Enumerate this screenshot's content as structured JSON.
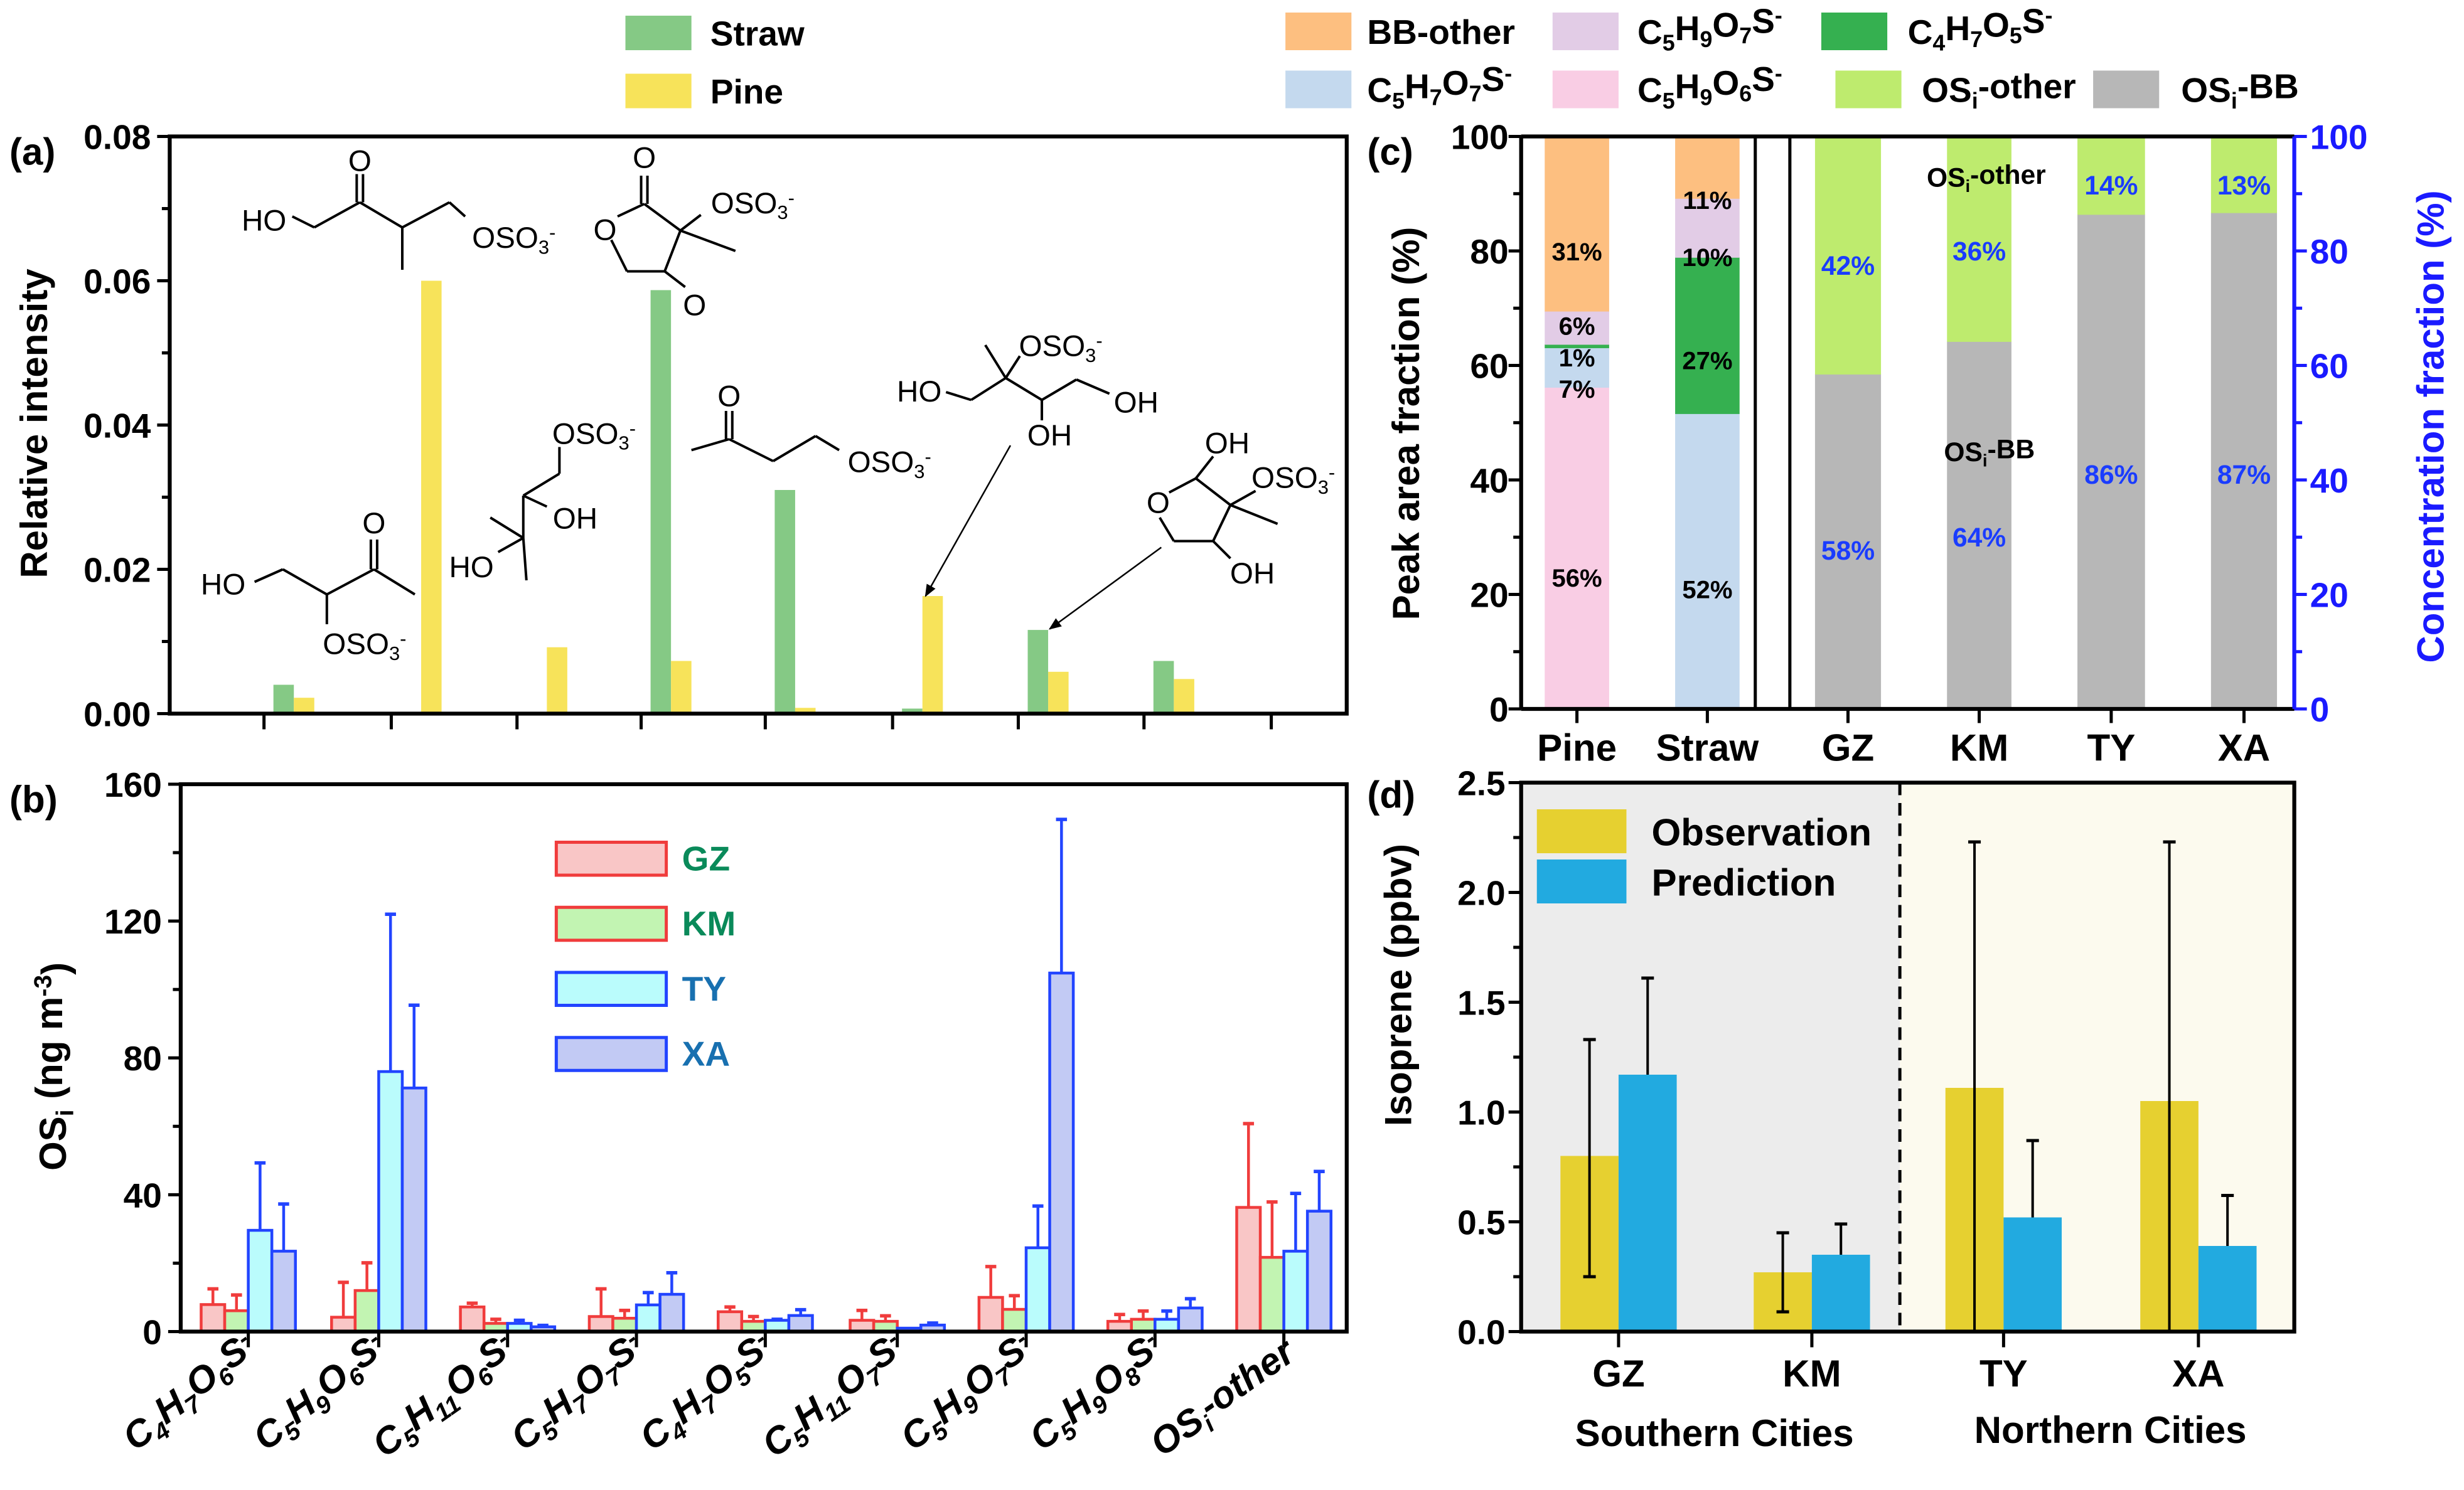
{
  "panel_labels": {
    "a": "(a)",
    "b": "(b)",
    "c": "(c)",
    "d": "(d)"
  },
  "legend_top": {
    "straw": "Straw",
    "pine": "Pine"
  },
  "chart_data": [
    {
      "panel": "a",
      "type": "bar",
      "title": "",
      "xlabel": "",
      "ylabel": "Relative intensity",
      "ylim": [
        0,
        0.08
      ],
      "yticks": [
        0,
        0.02,
        0.04,
        0.06,
        0.08
      ],
      "ytick_labels": [
        "0.00",
        "0.02",
        "0.04",
        "0.06",
        "0.08"
      ],
      "series": [
        {
          "name": "Straw",
          "color": "#85C985",
          "values": [
            0.004,
            0,
            0,
            0.0587,
            0.031,
            0.0007,
            0.0116,
            0.0073
          ]
        },
        {
          "name": "Pine",
          "color": "#F7E35A",
          "values": [
            0.0022,
            0.06,
            0.0092,
            0.0073,
            0.0008,
            0.0163,
            0.0058,
            0.0048
          ]
        }
      ],
      "structures": [
        {
          "labels": [
            "HO",
            "O",
            "OSO3-"
          ]
        },
        {
          "labels": [
            "O",
            "O",
            "OSO3-",
            "O"
          ]
        },
        {
          "labels": [
            "HO",
            "O",
            "OSO3-"
          ]
        },
        {
          "labels": [
            "OSO3-",
            "OH",
            "HO"
          ]
        },
        {
          "labels": [
            "O",
            "OSO3-"
          ]
        },
        {
          "labels": [
            "OSO3-",
            "HO",
            "OH",
            "OH"
          ]
        },
        {
          "labels": [
            "OH",
            "OSO3-",
            "O",
            "OH"
          ]
        }
      ]
    },
    {
      "panel": "b",
      "type": "bar",
      "title": "",
      "xlabel": "",
      "ylabel": "OSi (ng m-3)",
      "ylim": [
        0,
        160
      ],
      "yticks": [
        0,
        40,
        80,
        120,
        160
      ],
      "ytick_labels": [
        "0",
        "40",
        "80",
        "120",
        "160"
      ],
      "categories": [
        "C4H7O6S-",
        "C5H9O6S-",
        "C5H11O6S-",
        "C5H7O7S-",
        "C4H7O5S-",
        "C5H11O7S-",
        "C5H9O7S-",
        "C5H9O8S-",
        "OSi-other"
      ],
      "series": [
        {
          "name": "GZ",
          "fill": "#F9C6C6",
          "stroke": "#F03C3C",
          "label_color": "#0A8A5A",
          "values": [
            7.9,
            4.2,
            7.2,
            4.4,
            5.8,
            3.3,
            10.0,
            3.0,
            36.3
          ],
          "error_upper": [
            12.5,
            14.4,
            8.3,
            12.5,
            7.2,
            6.2,
            19.0,
            5.0,
            60.8
          ]
        },
        {
          "name": "KM",
          "fill": "#C2F4B2",
          "stroke": "#F03C3C",
          "label_color": "#0A8A5A",
          "values": [
            6.1,
            12.0,
            2.4,
            3.9,
            3.0,
            3.0,
            6.5,
            3.6,
            21.7
          ],
          "error_upper": [
            10.7,
            20.1,
            3.6,
            6.2,
            4.4,
            4.6,
            10.5,
            6.0,
            37.9
          ]
        },
        {
          "name": "TY",
          "fill": "#BAFCFC",
          "stroke": "#2244FF",
          "label_color": "#1870B0",
          "values": [
            29.6,
            76.0,
            2.4,
            7.8,
            3.3,
            1.0,
            24.5,
            3.6,
            23.5
          ],
          "error_upper": [
            49.3,
            122.0,
            3.3,
            11.4,
            3.6,
            1.0,
            36.7,
            6.0,
            40.4
          ]
        },
        {
          "name": "XA",
          "fill": "#C2CAF4",
          "stroke": "#2244FF",
          "label_color": "#1870B0",
          "values": [
            23.5,
            71.2,
            1.4,
            10.9,
            4.7,
            1.9,
            104.8,
            6.9,
            35.2
          ],
          "error_upper": [
            37.3,
            95.4,
            1.8,
            17.2,
            6.4,
            2.5,
            149.7,
            9.6,
            46.8
          ]
        }
      ]
    },
    {
      "panel": "c",
      "type": "bar",
      "stacked": true,
      "title": "",
      "ylabel": "Peak area fraction (%)",
      "y2label": "Concentration fraction (%)",
      "ylim": [
        0,
        100
      ],
      "yticks": [
        0,
        20,
        40,
        60,
        80,
        100
      ],
      "ytick_labels": [
        "0",
        "20",
        "40",
        "60",
        "80",
        "100"
      ],
      "axis2_color": "#1A1AFF",
      "categories": [
        "Pine",
        "Straw",
        "GZ",
        "KM",
        "TY",
        "XA"
      ],
      "legend": [
        {
          "name": "BB-other",
          "color": "#FDBF80"
        },
        {
          "name": "C5H9O7S-",
          "color": "#E2CCE6"
        },
        {
          "name": "C4H7O5S-",
          "color": "#35B050"
        },
        {
          "name": "C5H7O7S-",
          "color": "#C4D9EE"
        },
        {
          "name": "C5H9O6S-",
          "color": "#F9CDE4"
        },
        {
          "name": "OSi-other",
          "color": "#BEEB6E"
        },
        {
          "name": "OSi-BB",
          "color": "#B7B7B7"
        }
      ],
      "stacks": [
        {
          "category": "Pine",
          "label_color": "#000000",
          "segments": [
            {
              "component": "C5H9O6S-",
              "value": 56.2,
              "label": "56%"
            },
            {
              "component": "C5H7O7S-",
              "value": 6.9,
              "label": "7%"
            },
            {
              "component": "C4H7O5S-",
              "value": 0.6,
              "label": "1%"
            },
            {
              "component": "C5H9O7S-",
              "value": 5.8,
              "label": "6%"
            },
            {
              "component": "BB-other",
              "value": 30.5,
              "label": "31%"
            }
          ]
        },
        {
          "category": "Straw",
          "label_color": "#000000",
          "segments": [
            {
              "component": "C5H7O7S-",
              "value": 51.6,
              "label": "52%"
            },
            {
              "component": "C4H7O5S-",
              "value": 27.3,
              "label": "27%"
            },
            {
              "component": "C5H9O7S-",
              "value": 10.3,
              "label": "10%"
            },
            {
              "component": "BB-other",
              "value": 10.8,
              "label": "11%"
            }
          ]
        },
        {
          "category": "GZ",
          "label_color": "#1A3CFF",
          "segments": [
            {
              "component": "OSi-BB",
              "value": 58.5,
              "label": "58%"
            },
            {
              "component": "OSi-other",
              "value": 41.5,
              "label": "42%"
            }
          ]
        },
        {
          "category": "KM",
          "label_color": "#1A3CFF",
          "segments": [
            {
              "component": "OSi-BB",
              "value": 64.2,
              "label": "64%"
            },
            {
              "component": "OSi-other",
              "value": 35.8,
              "label": "36%"
            }
          ]
        },
        {
          "category": "TY",
          "label_color": "#1A3CFF",
          "segments": [
            {
              "component": "OSi-BB",
              "value": 86.4,
              "label": "86%"
            },
            {
              "component": "OSi-other",
              "value": 13.6,
              "label": "14%"
            }
          ]
        },
        {
          "category": "XA",
          "label_color": "#1A3CFF",
          "segments": [
            {
              "component": "OSi-BB",
              "value": 86.7,
              "label": "87%"
            },
            {
              "component": "OSi-other",
              "value": 13.3,
              "label": "13%"
            }
          ]
        }
      ],
      "annotations": [
        "OSi-other",
        "OSi-BB"
      ]
    },
    {
      "panel": "d",
      "type": "bar",
      "title": "",
      "ylabel": "Isoprene (ppbv)",
      "ylim": [
        0,
        2.5
      ],
      "yticks": [
        0,
        0.5,
        1.0,
        1.5,
        2.0,
        2.5
      ],
      "ytick_labels": [
        "0.0",
        "0.5",
        "1.0",
        "1.5",
        "2.0",
        "2.5"
      ],
      "categories": [
        "GZ",
        "KM",
        "TY",
        "XA"
      ],
      "groups": [
        "Southern Cities",
        "Northern Cities"
      ],
      "group_backgrounds": [
        "#ECECEC",
        "#FCFAEE"
      ],
      "series": [
        {
          "name": "Observation",
          "color": "#E6D030",
          "values": [
            0.8,
            0.27,
            1.11,
            1.05
          ],
          "error_upper": [
            1.33,
            0.45,
            2.23,
            2.23
          ],
          "error_lower": [
            0.25,
            0.09,
            0.0,
            0.0
          ]
        },
        {
          "name": "Prediction",
          "color": "#22AAE0",
          "values": [
            1.17,
            0.35,
            0.52,
            0.39
          ],
          "error_upper": [
            1.61,
            0.49,
            0.87,
            0.62
          ]
        }
      ]
    }
  ]
}
